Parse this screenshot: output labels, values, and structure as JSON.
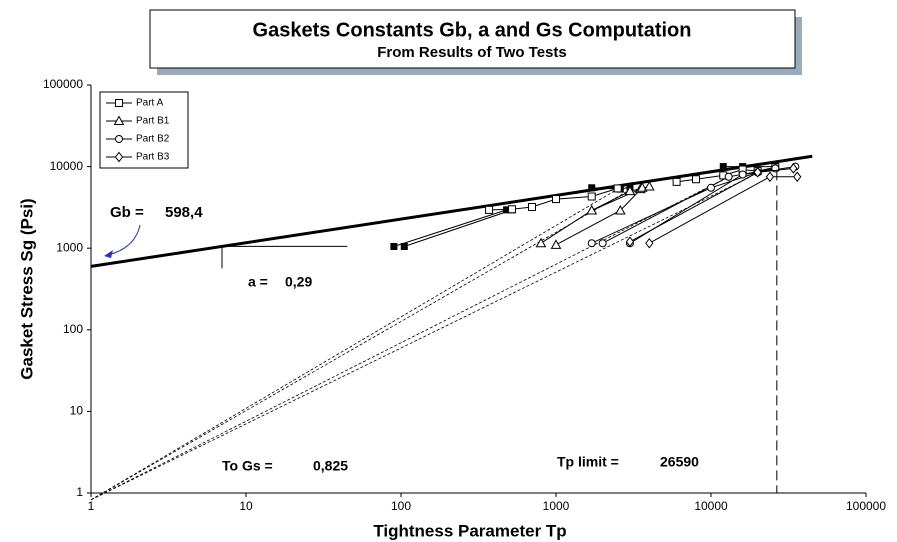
{
  "chart_data": {
    "type": "line",
    "title": "Gaskets Constants Gb, a and Gs Computation",
    "subtitle": "From Results of Two Tests",
    "x_label": "Tightness Parameter Tp",
    "y_label": "Gasket Stress Sg (Psi)",
    "log_x": true,
    "log_y": true,
    "xlim": [
      1,
      100000
    ],
    "ylim": [
      1,
      100000
    ],
    "xticks": [
      1,
      10,
      100,
      1000,
      10000,
      100000
    ],
    "yticks": [
      1,
      10,
      100,
      1000,
      10000,
      100000
    ],
    "legend": "upper left",
    "series": [
      {
        "name": "Part A",
        "marker": "square",
        "color": "#000",
        "x": [
          370,
          520,
          700,
          1000,
          1700,
          2500,
          null,
          6000,
          8000,
          12000,
          16000,
          20000,
          26000
        ],
        "values": [
          2950,
          3000,
          3200,
          4000,
          4300,
          5400,
          null,
          6500,
          7000,
          7800,
          9200,
          8800,
          9800
        ]
      },
      {
        "name": "Part B1",
        "marker": "triangle",
        "color": "#000",
        "x": [
          800,
          1700,
          3500,
          null,
          1000,
          2600,
          3600,
          null,
          1700,
          3000,
          4000
        ],
        "values": [
          1150,
          2900,
          5300,
          null,
          1100,
          2900,
          5500,
          null,
          2900,
          5000,
          5700
        ]
      },
      {
        "name": "Part B2",
        "marker": "circle",
        "color": "#000",
        "x": [
          1700,
          10000,
          20000,
          null,
          2000,
          13000,
          26000,
          null,
          3000,
          16000,
          35000
        ],
        "values": [
          1150,
          5500,
          8500,
          null,
          1150,
          7500,
          9500,
          null,
          1150,
          8000,
          10000
        ]
      },
      {
        "name": "Part B3",
        "marker": "diamond",
        "color": "#000",
        "x": [
          4000,
          24000,
          36000,
          null,
          3000,
          20000,
          34000
        ],
        "values": [
          1150,
          7500,
          7500,
          null,
          1200,
          8500,
          9500
        ]
      }
    ],
    "reference_points": {
      "x": [
        90,
        480,
        null,
        105,
        520,
        null,
        1700,
        2600,
        3000,
        null,
        12000,
        16000,
        26000
      ],
      "values": [
        1050,
        2950,
        null,
        1050,
        2950,
        null,
        5500,
        5300,
        5600,
        null,
        10000,
        10000,
        10000
      ]
    },
    "fit_xlim": [
      1,
      45000
    ],
    "gb_label": "Gb =",
    "gb": {
      "value": 598.4,
      "label": "598,4"
    },
    "a_label": "a =",
    "a": {
      "value": 0.29,
      "label": "0,29"
    },
    "slope_xlim": [
      7,
      45
    ],
    "gs_label": "To Gs =",
    "gs": {
      "value": 0.825,
      "label": "0,825"
    },
    "gs_lines": {
      "x": [
        2500,
        3000,
        13000,
        18000
      ],
      "values": [
        5300,
        5200,
        7500,
        7500
      ]
    },
    "tp_label": "Tp  limit =",
    "tp_limit": 26590
  }
}
